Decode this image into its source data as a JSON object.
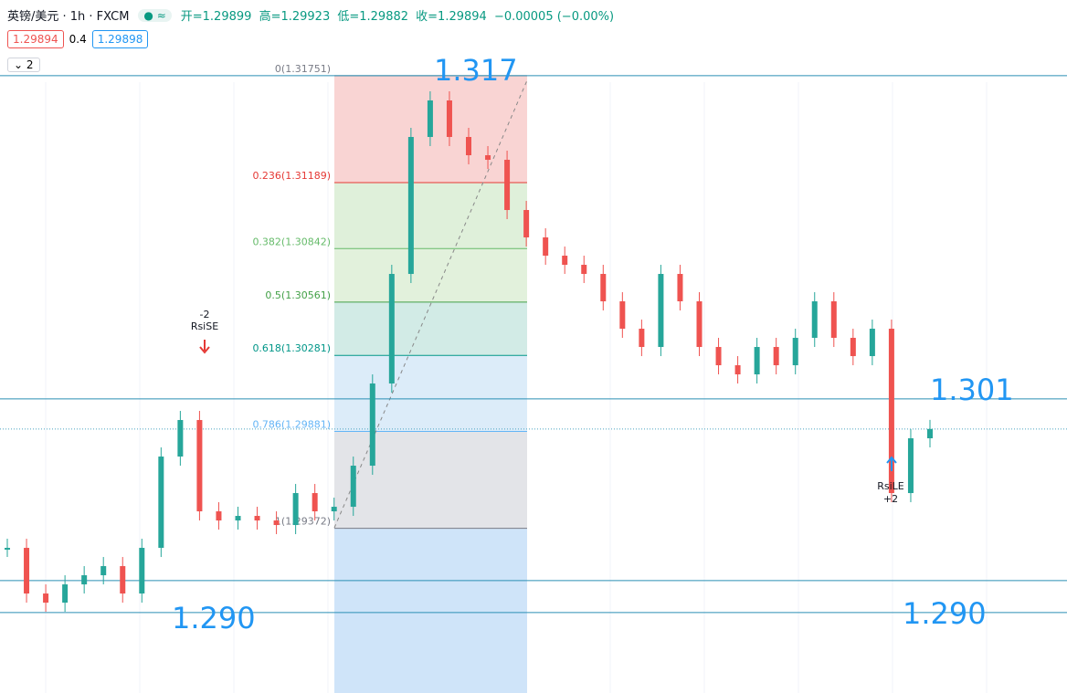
{
  "header": {
    "symbol": "英镑/美元 · 1h · FXCM",
    "open": "开=1.29899",
    "high": "高=1.29923",
    "low": "低=1.29882",
    "close": "收=1.29894",
    "change": "−0.00005 (−0.00%)",
    "sell": "1.29894",
    "spread": "0.4",
    "buy": "1.29898",
    "indicators": "2"
  },
  "chart_data": {
    "type": "candlestick",
    "closes": [
      1.29269,
      1.29029,
      1.28981,
      1.29077,
      1.29125,
      1.29173,
      1.29029,
      1.29269,
      1.29749,
      1.29941,
      1.29461,
      1.29413,
      1.29437,
      1.29413,
      1.29389,
      1.29557,
      1.29461,
      1.29485,
      1.29701,
      1.30133,
      1.30709,
      1.31429,
      1.31621,
      1.31429,
      1.31333,
      1.31309,
      1.31045,
      1.30901,
      1.30805,
      1.30757,
      1.30709,
      1.30565,
      1.30421,
      1.30325,
      1.30709,
      1.30565,
      1.30325,
      1.30229,
      1.30181,
      1.30325,
      1.30229,
      1.30373,
      1.30565,
      1.30373,
      1.30277,
      1.30421,
      1.29557,
      1.29845,
      1.29894
    ],
    "ylim": [
      1.28506,
      1.32149
    ],
    "fib_levels": [
      {
        "label": "0(1.31751)",
        "value": 1.31751,
        "color": "#787b86",
        "fill": "#f9d4d3"
      },
      {
        "label": "0.236(1.31189)",
        "value": 1.31189,
        "color": "#e53935",
        "fill": "#dff0da"
      },
      {
        "label": "0.382(1.30842)",
        "value": 1.30842,
        "color": "#66bb6a",
        "fill": "#e2f1dc"
      },
      {
        "label": "0.5(1.30561)",
        "value": 1.30561,
        "color": "#43a047",
        "fill": "#d2ebe6"
      },
      {
        "label": "0.618(1.30281)",
        "value": 1.30281,
        "color": "#009688",
        "fill": "#dcecf9"
      },
      {
        "label": "0.786(1.29881)",
        "value": 1.29881,
        "color": "#64b5f6",
        "fill": "#e3e4e8"
      },
      {
        "label": "1(1.29372)",
        "value": 1.29372,
        "color": "#787b86",
        "fill": "#cfe4f9"
      }
    ],
    "levels": [
      1.31751,
      1.30052,
      1.29097,
      1.28929
    ],
    "last_price": 1.29894,
    "annotations": [
      "1.317",
      "1.301",
      "1.290",
      "1.290"
    ],
    "signals": {
      "short_count": "-2",
      "short": "RsiSE",
      "long": "RsiLE",
      "long_count": "+2"
    }
  }
}
